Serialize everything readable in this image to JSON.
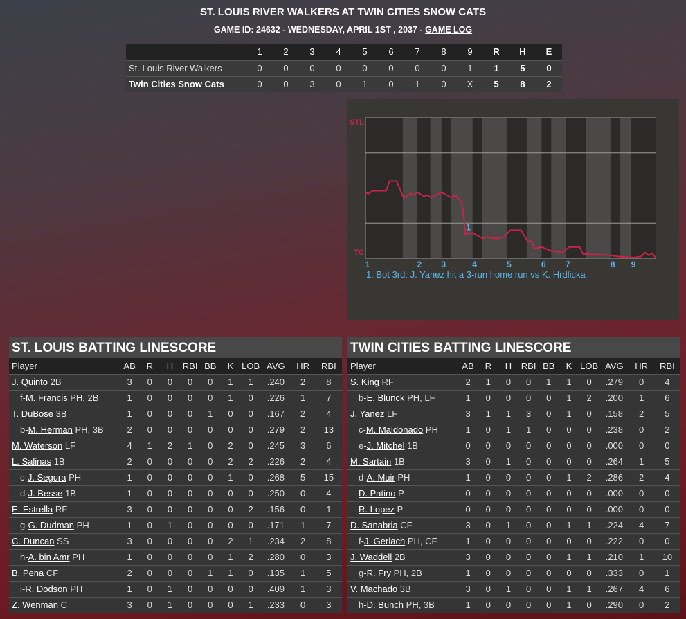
{
  "header": {
    "title": "ST. LOUIS RIVER WALKERS AT TWIN CITIES SNOW CATS",
    "subtitle": "GAME ID: 24632 - WEDNESDAY, APRIL 1ST , 2037 - ",
    "game_log_link": "GAME LOG"
  },
  "linescore": {
    "columns": [
      "",
      "1",
      "2",
      "3",
      "4",
      "5",
      "6",
      "7",
      "8",
      "9",
      "R",
      "H",
      "E"
    ],
    "rows": [
      {
        "team": "St. Louis River Walkers",
        "innings": [
          "0",
          "0",
          "0",
          "0",
          "0",
          "0",
          "0",
          "0",
          "1"
        ],
        "r": "1",
        "h": "5",
        "e": "0"
      },
      {
        "team": "Twin Cities Snow Cats",
        "innings": [
          "0",
          "0",
          "3",
          "0",
          "1",
          "0",
          "1",
          "0",
          "X"
        ],
        "r": "5",
        "h": "8",
        "e": "2"
      }
    ]
  },
  "chart_data": {
    "type": "line",
    "top_label": "STL",
    "bottom_label": "TC",
    "ylim": [
      0,
      100
    ],
    "xlim": [
      0,
      84
    ],
    "grid": "horizontal",
    "line_color": "#c8234a",
    "label_color": "#5ab4e6",
    "inning_labels": [
      {
        "label": "1",
        "x": 0
      },
      {
        "label": "2",
        "x": 15
      },
      {
        "label": "3",
        "x": 22
      },
      {
        "label": "4",
        "x": 31
      },
      {
        "label": "5",
        "x": 41
      },
      {
        "label": "6",
        "x": 51
      },
      {
        "label": "7",
        "x": 58
      },
      {
        "label": "8",
        "x": 71
      },
      {
        "label": "9",
        "x": 77
      }
    ],
    "bottom_half_bands": [
      [
        10.8,
        15
      ],
      [
        18.8,
        22
      ],
      [
        24.8,
        31
      ],
      [
        33.8,
        41
      ],
      [
        46.8,
        51
      ],
      [
        53.8,
        58
      ],
      [
        63.8,
        71
      ],
      [
        73.8,
        77
      ]
    ],
    "points": [
      [
        0,
        46.6
      ],
      [
        1,
        46
      ],
      [
        2,
        48
      ],
      [
        6,
        48
      ],
      [
        7,
        55
      ],
      [
        9,
        55
      ],
      [
        11,
        43
      ],
      [
        13,
        46
      ],
      [
        14,
        45
      ],
      [
        15,
        47
      ],
      [
        17,
        44
      ],
      [
        18,
        45
      ],
      [
        19,
        43
      ],
      [
        22,
        47
      ],
      [
        25,
        43
      ],
      [
        26,
        45
      ],
      [
        28,
        39
      ],
      [
        29,
        17
      ],
      [
        31,
        18
      ],
      [
        34,
        14
      ],
      [
        35,
        15
      ],
      [
        38,
        14
      ],
      [
        40,
        15
      ],
      [
        42,
        20
      ],
      [
        45,
        20
      ],
      [
        47,
        12
      ],
      [
        48,
        12
      ],
      [
        49,
        7
      ],
      [
        51,
        8
      ],
      [
        54,
        5
      ],
      [
        55,
        5
      ],
      [
        57,
        4
      ],
      [
        59,
        8
      ],
      [
        62,
        8
      ],
      [
        63,
        3
      ],
      [
        69,
        2.5
      ],
      [
        71,
        2
      ],
      [
        74,
        1
      ],
      [
        78,
        0.5
      ],
      [
        80,
        1.5
      ],
      [
        81,
        4
      ],
      [
        82,
        2
      ],
      [
        83,
        3.5
      ],
      [
        84,
        0.5
      ]
    ],
    "annotations": [
      {
        "label": "1",
        "x": 29,
        "y": 22
      }
    ],
    "notes": [
      "1. Bot 3rd: J. Yanez hit a 3-run home run vs K. Hrdlicka"
    ]
  },
  "stl": {
    "title": "ST. LOUIS BATTING LINESCORE",
    "columns": [
      "Player",
      "AB",
      "R",
      "H",
      "RBI",
      "BB",
      "K",
      "LOB",
      "AVG",
      "HR",
      "RBI"
    ],
    "rows": [
      {
        "pre": "",
        "name": "J. Quinto",
        "pos": " 2B",
        "stats": [
          "3",
          "0",
          "0",
          "0",
          "0",
          "1",
          "1",
          ".240",
          "2",
          "8"
        ]
      },
      {
        "pre": "f-",
        "name": "M. Francis",
        "pos": " PH, 2B",
        "stats": [
          "1",
          "0",
          "0",
          "0",
          "0",
          "1",
          "0",
          ".226",
          "1",
          "7"
        ]
      },
      {
        "pre": "",
        "name": "T. DuBose",
        "pos": " 3B",
        "stats": [
          "1",
          "0",
          "0",
          "0",
          "1",
          "0",
          "0",
          ".167",
          "2",
          "4"
        ]
      },
      {
        "pre": "b-",
        "name": "M. Herman",
        "pos": " PH, 3B",
        "stats": [
          "2",
          "0",
          "0",
          "0",
          "0",
          "0",
          "0",
          ".279",
          "2",
          "13"
        ]
      },
      {
        "pre": "",
        "name": "M. Waterson",
        "pos": " LF",
        "stats": [
          "4",
          "1",
          "2",
          "1",
          "0",
          "2",
          "0",
          ".245",
          "3",
          "6"
        ]
      },
      {
        "pre": "",
        "name": "L. Salinas",
        "pos": " 1B",
        "stats": [
          "2",
          "0",
          "0",
          "0",
          "0",
          "2",
          "2",
          ".226",
          "2",
          "4"
        ]
      },
      {
        "pre": "c-",
        "name": "J. Segura",
        "pos": " PH",
        "stats": [
          "1",
          "0",
          "0",
          "0",
          "0",
          "1",
          "0",
          ".268",
          "5",
          "15"
        ]
      },
      {
        "pre": "d-",
        "name": "J. Besse",
        "pos": " 1B",
        "stats": [
          "1",
          "0",
          "0",
          "0",
          "0",
          "0",
          "0",
          ".250",
          "0",
          "4"
        ]
      },
      {
        "pre": "",
        "name": "E. Estrella",
        "pos": " RF",
        "stats": [
          "3",
          "0",
          "0",
          "0",
          "0",
          "0",
          "2",
          ".156",
          "0",
          "1"
        ]
      },
      {
        "pre": "g-",
        "name": "G. Dudman",
        "pos": " PH",
        "stats": [
          "1",
          "0",
          "1",
          "0",
          "0",
          "0",
          "0",
          ".171",
          "1",
          "7"
        ]
      },
      {
        "pre": "",
        "name": "C. Duncan",
        "pos": " SS",
        "stats": [
          "3",
          "0",
          "0",
          "0",
          "0",
          "2",
          "1",
          ".234",
          "2",
          "8"
        ]
      },
      {
        "pre": "h-",
        "name": "A. bin Amr",
        "pos": " PH",
        "stats": [
          "1",
          "0",
          "0",
          "0",
          "0",
          "1",
          "2",
          ".280",
          "0",
          "3"
        ]
      },
      {
        "pre": "",
        "name": "B. Pena",
        "pos": " CF",
        "stats": [
          "2",
          "0",
          "0",
          "0",
          "1",
          "1",
          "0",
          ".135",
          "1",
          "5"
        ]
      },
      {
        "pre": "i-",
        "name": "R. Dodson",
        "pos": " PH",
        "stats": [
          "1",
          "0",
          "1",
          "0",
          "0",
          "0",
          "0",
          ".409",
          "1",
          "3"
        ]
      },
      {
        "pre": "",
        "name": "Z. Wenman",
        "pos": " C",
        "stats": [
          "3",
          "0",
          "1",
          "0",
          "0",
          "0",
          "1",
          ".233",
          "0",
          "3"
        ]
      }
    ]
  },
  "tc": {
    "title": "TWIN CITIES BATTING LINESCORE",
    "columns": [
      "Player",
      "AB",
      "R",
      "H",
      "RBI",
      "BB",
      "K",
      "LOB",
      "AVG",
      "HR",
      "RBI"
    ],
    "rows": [
      {
        "pre": "",
        "name": "S. King",
        "pos": " RF",
        "stats": [
          "2",
          "1",
          "0",
          "0",
          "1",
          "1",
          "0",
          ".279",
          "0",
          "4"
        ]
      },
      {
        "pre": "b-",
        "name": "E. Blunck",
        "pos": " PH, LF",
        "stats": [
          "1",
          "0",
          "0",
          "0",
          "0",
          "1",
          "2",
          ".200",
          "1",
          "6"
        ]
      },
      {
        "pre": "",
        "name": "J. Yanez",
        "pos": " LF",
        "stats": [
          "3",
          "1",
          "1",
          "3",
          "0",
          "1",
          "0",
          ".158",
          "2",
          "5"
        ]
      },
      {
        "pre": "c-",
        "name": "M. Maldonado",
        "pos": " PH",
        "stats": [
          "1",
          "0",
          "1",
          "1",
          "0",
          "0",
          "0",
          ".238",
          "0",
          "2"
        ]
      },
      {
        "pre": "e-",
        "name": "J. Mitchel",
        "pos": " 1B",
        "stats": [
          "0",
          "0",
          "0",
          "0",
          "0",
          "0",
          "0",
          ".000",
          "0",
          "0"
        ]
      },
      {
        "pre": "",
        "name": "M. Sartain",
        "pos": " 1B",
        "stats": [
          "3",
          "0",
          "1",
          "0",
          "0",
          "0",
          "0",
          ".264",
          "1",
          "5"
        ]
      },
      {
        "pre": "d-",
        "name": "A. Muir",
        "pos": " PH",
        "stats": [
          "1",
          "0",
          "0",
          "0",
          "0",
          "1",
          "2",
          ".286",
          "2",
          "4"
        ]
      },
      {
        "pre": "",
        "name": "D. Patino",
        "pos": " P",
        "sub": true,
        "stats": [
          "0",
          "0",
          "0",
          "0",
          "0",
          "0",
          "0",
          ".000",
          "0",
          "0"
        ]
      },
      {
        "pre": "",
        "name": "R. Lopez",
        "pos": " P",
        "sub": true,
        "stats": [
          "0",
          "0",
          "0",
          "0",
          "0",
          "0",
          "0",
          ".000",
          "0",
          "0"
        ]
      },
      {
        "pre": "",
        "name": "D. Sanabria",
        "pos": " CF",
        "stats": [
          "3",
          "0",
          "1",
          "0",
          "0",
          "1",
          "1",
          ".224",
          "4",
          "7"
        ]
      },
      {
        "pre": "f-",
        "name": "J. Gerlach",
        "pos": " PH, CF",
        "stats": [
          "1",
          "0",
          "0",
          "0",
          "0",
          "0",
          "0",
          ".222",
          "0",
          "0"
        ]
      },
      {
        "pre": "",
        "name": "J. Waddell",
        "pos": " 2B",
        "stats": [
          "3",
          "0",
          "0",
          "0",
          "0",
          "1",
          "1",
          ".210",
          "1",
          "10"
        ]
      },
      {
        "pre": "g-",
        "name": "R. Fry",
        "pos": " PH, 2B",
        "stats": [
          "1",
          "0",
          "0",
          "0",
          "0",
          "0",
          "0",
          ".333",
          "0",
          "1"
        ]
      },
      {
        "pre": "",
        "name": "V. Machado",
        "pos": " 3B",
        "stats": [
          "3",
          "0",
          "1",
          "0",
          "0",
          "1",
          "1",
          ".267",
          "4",
          "6"
        ]
      },
      {
        "pre": "h-",
        "name": "D. Bunch",
        "pos": " PH, 3B",
        "stats": [
          "1",
          "0",
          "0",
          "0",
          "0",
          "1",
          "0",
          ".290",
          "0",
          "2"
        ]
      }
    ]
  }
}
